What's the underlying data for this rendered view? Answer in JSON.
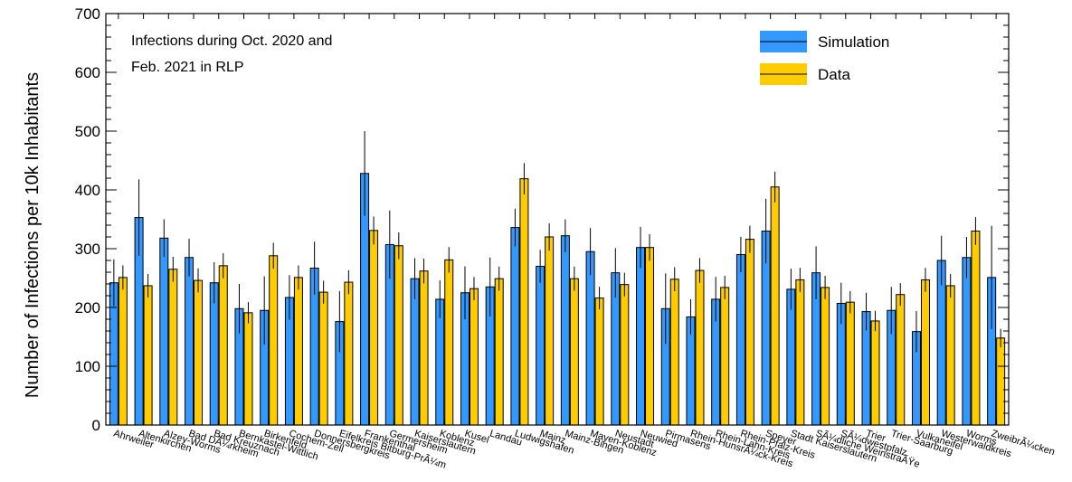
{
  "chart_data": {
    "type": "bar",
    "title": "",
    "annotation_lines": [
      "Infections during Oct. 2020 and",
      "Feb. 2021 in RLP"
    ],
    "ylabel": "Number of Infections per 10k Inhabitants",
    "xlabel": "",
    "ylim": [
      0,
      700
    ],
    "yticks": [
      0,
      100,
      200,
      300,
      400,
      500,
      600,
      700
    ],
    "legend_position": "top-right",
    "grid": false,
    "categories": [
      "Ahrweiler",
      "Altenkirchen",
      "Alzey-Worms",
      "Bad DÃ¼rkheim",
      "Bad Kreuznach",
      "Bernkastel-Wittlich",
      "Birkenfeld",
      "Cochem-Zell",
      "Donnersbergkreis",
      "Eifelkreis Bitburg-PrÃ¼m",
      "Frankenthal",
      "Germersheim",
      "Kaiserslautern",
      "Koblenz",
      "Kusel",
      "Landau",
      "Ludwigshafen",
      "Mainz",
      "Mainz-Bingen",
      "Mayen-Koblenz",
      "Neustadt",
      "Neuwied",
      "Pirmasens",
      "Rhein-HunsrÃ¼ck-Kreis",
      "Rhein-Lahn-Kreis",
      "Rhein-Pfalz-Kreis",
      "Speyer",
      "Stadt Kaiserslautern",
      "SÃ¼dliche WeinstraÃŸe",
      "SÃ¼dwestpfalz",
      "Trier",
      "Trier-Saarburg",
      "Vulkaneifel",
      "Westerwaldkreis",
      "Worms",
      "ZweibrÃ¼cken"
    ],
    "series": [
      {
        "name": "Simulation",
        "color": "#3399ff",
        "values": [
          242,
          353,
          318,
          285,
          242,
          198,
          195,
          217,
          267,
          176,
          428,
          307,
          249,
          214,
          225,
          235,
          336,
          270,
          322,
          295,
          259,
          302,
          198,
          184,
          214,
          290,
          330,
          231,
          259,
          207,
          193,
          195,
          159,
          280,
          285,
          251
        ],
        "errors": [
          40,
          65,
          32,
          32,
          35,
          42,
          58,
          38,
          45,
          52,
          72,
          58,
          35,
          32,
          45,
          50,
          32,
          28,
          28,
          40,
          42,
          35,
          60,
          30,
          38,
          30,
          55,
          35,
          45,
          35,
          32,
          40,
          35,
          42,
          35,
          88
        ]
      },
      {
        "name": "Data",
        "color": "#ffcc00",
        "values": [
          251,
          237,
          265,
          246,
          271,
          191,
          288,
          251,
          226,
          243,
          331,
          305,
          262,
          281,
          232,
          249,
          419,
          320,
          249,
          216,
          239,
          302,
          248,
          263,
          234,
          316,
          405,
          247,
          234,
          209,
          177,
          222,
          247,
          237,
          330,
          148
        ]
      }
    ]
  }
}
